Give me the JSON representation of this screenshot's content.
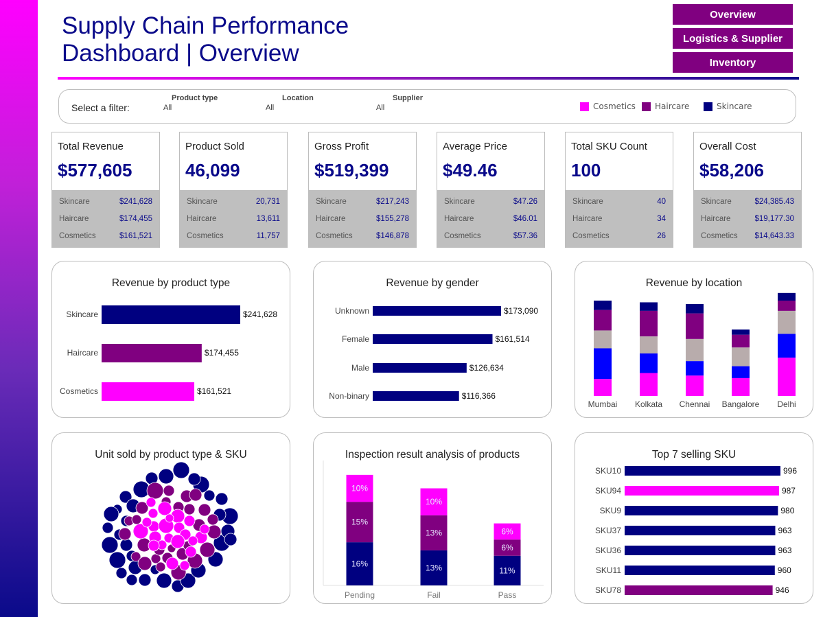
{
  "header": {
    "title_line1": "Supply Chain Performance",
    "title_line2": "Dashboard | Overview"
  },
  "nav": {
    "overview": "Overview",
    "logistics": "Logistics & Supplier",
    "inventory": "Inventory"
  },
  "filters": {
    "label": "Select a filter:",
    "product_type": {
      "label": "Product type",
      "value": "All"
    },
    "location": {
      "label": "Location",
      "value": "All"
    },
    "supplier": {
      "label": "Supplier",
      "value": "All"
    }
  },
  "legend": [
    {
      "name": "Cosmetics",
      "color": "#ff00ff"
    },
    {
      "name": "Haircare",
      "color": "#800080"
    },
    {
      "name": "Skincare",
      "color": "#000080"
    }
  ],
  "kpis": [
    {
      "title": "Total Revenue",
      "value": "$577,605",
      "rows": [
        {
          "label": "Skincare",
          "value": "$241,628"
        },
        {
          "label": "Haircare",
          "value": "$174,455"
        },
        {
          "label": "Cosmetics",
          "value": "$161,521"
        }
      ]
    },
    {
      "title": "Product Sold",
      "value": "46,099",
      "rows": [
        {
          "label": "Skincare",
          "value": "20,731"
        },
        {
          "label": "Haircare",
          "value": "13,611"
        },
        {
          "label": "Cosmetics",
          "value": "11,757"
        }
      ]
    },
    {
      "title": "Gross Profit",
      "value": "$519,399",
      "rows": [
        {
          "label": "Skincare",
          "value": "$217,243"
        },
        {
          "label": "Haircare",
          "value": "$155,278"
        },
        {
          "label": "Cosmetics",
          "value": "$146,878"
        }
      ]
    },
    {
      "title": "Average Price",
      "value": "$49.46",
      "rows": [
        {
          "label": "Skincare",
          "value": "$47.26"
        },
        {
          "label": "Haircare",
          "value": "$46.01"
        },
        {
          "label": "Cosmetics",
          "value": "$57.36"
        }
      ]
    },
    {
      "title": "Total SKU Count",
      "value": "100",
      "rows": [
        {
          "label": "Skincare",
          "value": "40"
        },
        {
          "label": "Haircare",
          "value": "34"
        },
        {
          "label": "Cosmetics",
          "value": "26"
        }
      ]
    },
    {
      "title": "Overall Cost",
      "value": "$58,206",
      "rows": [
        {
          "label": "Skincare",
          "value": "$24,385.43"
        },
        {
          "label": "Haircare",
          "value": "$19,177.30"
        },
        {
          "label": "Cosmetics",
          "value": "$14,643.33"
        }
      ]
    }
  ],
  "chart_data": [
    {
      "id": "revenue_by_product_type",
      "type": "bar",
      "orientation": "horizontal",
      "title": "Revenue by product type",
      "categories": [
        "Skincare",
        "Haircare",
        "Cosmetics"
      ],
      "values": [
        241628,
        174455,
        161521
      ],
      "labels": [
        "$241,628",
        "$174,455",
        "$161,521"
      ],
      "colors": [
        "#000080",
        "#800080",
        "#ff00ff"
      ]
    },
    {
      "id": "revenue_by_gender",
      "type": "bar",
      "orientation": "horizontal",
      "title": "Revenue by gender",
      "categories": [
        "Unknown",
        "Female",
        "Male",
        "Non-binary"
      ],
      "values": [
        173090,
        161514,
        126634,
        116366
      ],
      "labels": [
        "$173,090",
        "$161,514",
        "$126,634",
        "$116,366"
      ],
      "color": "#000080"
    },
    {
      "id": "revenue_by_location",
      "type": "bar",
      "stacked": true,
      "title": "Revenue by location",
      "categories": [
        "Mumbai",
        "Kolkata",
        "Chennai",
        "Bangalore",
        "Delhi"
      ],
      "segment_colors": [
        "#ff00ff",
        "#0000ff",
        "#b8acac",
        "#800080",
        "#000080"
      ],
      "segments": [
        [
          20000,
          27000,
          24000,
          21000,
          45000
        ],
        [
          36000,
          23000,
          17000,
          14000,
          28000
        ],
        [
          21000,
          20000,
          26000,
          22000,
          27000
        ],
        [
          24000,
          30000,
          30000,
          15000,
          12000
        ],
        [
          11000,
          10000,
          11000,
          6000,
          9000
        ]
      ]
    },
    {
      "id": "unit_sold_by_type_sku",
      "type": "scatter",
      "title": "Unit sold by product type & SKU"
    },
    {
      "id": "inspection_results",
      "type": "bar",
      "stacked": true,
      "title": "Inspection result analysis of products",
      "categories": [
        "Pending",
        "Fail",
        "Pass"
      ],
      "series": [
        {
          "name": "Skincare",
          "color": "#000080",
          "values": [
            16,
            13,
            11
          ]
        },
        {
          "name": "Haircare",
          "color": "#800080",
          "values": [
            15,
            13,
            6
          ]
        },
        {
          "name": "Cosmetics",
          "color": "#ff00ff",
          "values": [
            10,
            10,
            6
          ]
        }
      ],
      "label_suffix": "%"
    },
    {
      "id": "top7_sku",
      "type": "bar",
      "orientation": "horizontal",
      "title": "Top 7 selling SKU",
      "categories": [
        "SKU10",
        "SKU94",
        "SKU9",
        "SKU37",
        "SKU36",
        "SKU11",
        "SKU78"
      ],
      "values": [
        996,
        987,
        980,
        963,
        963,
        960,
        946
      ],
      "colors": [
        "#000080",
        "#ff00ff",
        "#000080",
        "#000080",
        "#000080",
        "#000080",
        "#800080"
      ]
    }
  ]
}
